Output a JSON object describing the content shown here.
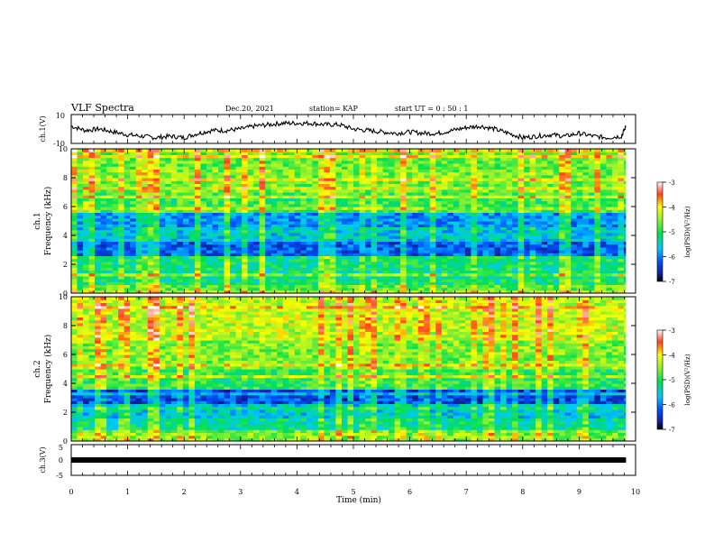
{
  "header": {
    "title": "VLF Spectra",
    "date": "Dec.20, 2021",
    "station": "station= KAP",
    "start": "start  UT =   0 : 50 : 1"
  },
  "chart_data": [
    {
      "type": "line",
      "panel": "ch1-waveform",
      "ylabel": "ch.1(V)",
      "ylim": [
        -10,
        10
      ],
      "yticks": [
        "10",
        "-10"
      ],
      "xlim": [
        0,
        10
      ],
      "x": [
        0,
        0.25,
        0.5,
        0.75,
        1.0,
        1.25,
        1.5,
        1.75,
        2.0,
        2.25,
        2.5,
        2.75,
        3.0,
        3.25,
        3.5,
        3.75,
        4.0,
        4.25,
        4.5,
        4.75,
        5.0,
        5.25,
        5.5,
        5.75,
        6.0,
        6.25,
        6.5,
        6.75,
        7.0,
        7.25,
        7.5,
        7.75,
        8.0,
        8.25,
        8.5,
        8.75,
        9.0,
        9.25,
        9.5,
        9.75,
        9.83
      ],
      "values": [
        2,
        -1,
        0,
        -2,
        -4,
        -5,
        -6,
        -5,
        -6,
        -3,
        -1,
        -1,
        0,
        2,
        3,
        4,
        4,
        4,
        3,
        3,
        0,
        -1,
        -2,
        -3,
        -2,
        -3,
        -3,
        -1,
        1,
        2,
        0,
        -3,
        -6,
        -5,
        -4,
        -5,
        -3,
        -5,
        -6,
        -5,
        2
      ]
    },
    {
      "type": "heatmap",
      "panel": "ch1-spectrogram",
      "ylabel": "ch.1\nFrequency (kHz)",
      "ylim": [
        0,
        10
      ],
      "yticks": [
        "0",
        "2",
        "4",
        "6",
        "8",
        "10"
      ],
      "xlim": [
        0,
        10
      ],
      "colorbar": {
        "label": "log(PSD)(V²/Hz)",
        "range": [
          -7,
          -3
        ],
        "ticks": [
          "-3",
          "-4",
          "-5",
          "-6",
          "-7"
        ]
      },
      "frequency_bands_log_psd": [
        {
          "f": [
            0,
            0.5
          ],
          "level": -4.8
        },
        {
          "f": [
            0.5,
            2.5
          ],
          "level": -5.2
        },
        {
          "f": [
            2.5,
            3.5
          ],
          "level": -6.2
        },
        {
          "f": [
            3.5,
            4.5
          ],
          "level": -5.6
        },
        {
          "f": [
            4.5,
            5.5
          ],
          "level": -5.9
        },
        {
          "f": [
            5.5,
            7.0
          ],
          "level": -4.9
        },
        {
          "f": [
            7.0,
            8.5
          ],
          "level": -4.6
        },
        {
          "f": [
            8.5,
            10
          ],
          "level": -4.7
        }
      ]
    },
    {
      "type": "heatmap",
      "panel": "ch2-spectrogram",
      "ylabel": "ch.2\nFrequency (kHz)",
      "ylim": [
        0,
        10
      ],
      "yticks": [
        "0",
        "2",
        "4",
        "6",
        "8",
        "10"
      ],
      "xlim": [
        0,
        10
      ],
      "colorbar": {
        "label": "log(PSD)(V²/Hz)",
        "range": [
          -7,
          -3
        ],
        "ticks": [
          "-3",
          "-4",
          "-5",
          "-6",
          "-7"
        ]
      },
      "frequency_bands_log_psd": [
        {
          "f": [
            0,
            0.5
          ],
          "level": -4.6
        },
        {
          "f": [
            0.5,
            1.5
          ],
          "level": -5.3
        },
        {
          "f": [
            1.5,
            2.5
          ],
          "level": -5.6
        },
        {
          "f": [
            2.5,
            3.5
          ],
          "level": -6.3
        },
        {
          "f": [
            3.5,
            5.0
          ],
          "level": -5.0
        },
        {
          "f": [
            5.0,
            7.0
          ],
          "level": -4.6
        },
        {
          "f": [
            7.0,
            10
          ],
          "level": -4.3
        }
      ]
    },
    {
      "type": "line",
      "panel": "ch3-waveform",
      "ylabel": "ch.3(V)",
      "ylim": [
        -5,
        5
      ],
      "yticks": [
        "5",
        "0",
        "-5"
      ],
      "xlim": [
        0,
        10
      ],
      "xlabel": "Time (min)",
      "xticks": [
        "0",
        "1",
        "2",
        "3",
        "4",
        "5",
        "6",
        "7",
        "8",
        "9",
        "10"
      ],
      "x": [
        0,
        9.83
      ],
      "values": [
        0,
        0
      ]
    }
  ]
}
